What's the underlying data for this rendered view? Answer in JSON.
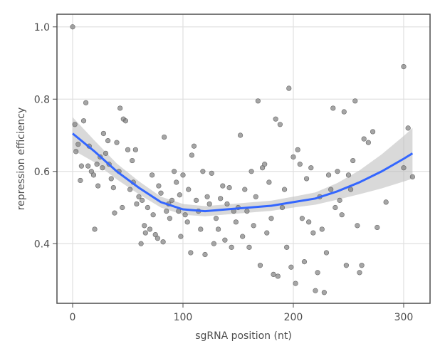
{
  "chart_data": {
    "type": "scatter",
    "xlabel": "sgRNA position (nt)",
    "ylabel": "repression efficiency",
    "xlim": [
      -14.2,
      323.9
    ],
    "ylim": [
      0.235,
      1.035
    ],
    "xticks": [
      0,
      100,
      200,
      300
    ],
    "yticks": [
      0.4,
      0.6,
      0.8,
      {
        "value": 1,
        "label": "1.0"
      }
    ],
    "grid": true,
    "points": {
      "color": "#7f7f7f",
      "x": [
        0,
        2,
        3,
        5,
        7,
        8,
        10,
        12,
        14,
        15,
        17,
        19,
        20,
        22,
        23,
        25,
        27,
        28,
        30,
        32,
        33,
        35,
        37,
        38,
        40,
        42,
        43,
        45,
        46,
        48,
        50,
        52,
        54,
        55,
        57,
        58,
        60,
        62,
        63,
        65,
        66,
        68,
        70,
        72,
        73,
        75,
        77,
        78,
        80,
        82,
        83,
        85,
        87,
        88,
        90,
        92,
        94,
        96,
        97,
        98,
        100,
        102,
        104,
        105,
        107,
        108,
        110,
        112,
        114,
        116,
        118,
        120,
        122,
        124,
        126,
        128,
        130,
        132,
        134,
        136,
        138,
        140,
        142,
        144,
        146,
        148,
        150,
        152,
        154,
        156,
        158,
        160,
        162,
        164,
        166,
        168,
        170,
        172,
        174,
        176,
        178,
        180,
        182,
        184,
        186,
        188,
        190,
        192,
        194,
        196,
        198,
        200,
        202,
        204,
        206,
        208,
        210,
        212,
        214,
        216,
        218,
        220,
        222,
        224,
        226,
        228,
        230,
        232,
        234,
        236,
        238,
        240,
        242,
        244,
        246,
        248,
        250,
        252,
        254,
        256,
        258,
        260,
        262,
        264,
        268,
        272,
        276,
        284,
        300,
        300,
        304,
        308
      ],
      "y": [
        1.0,
        0.73,
        0.655,
        0.675,
        0.575,
        0.615,
        0.74,
        0.79,
        0.615,
        0.67,
        0.6,
        0.59,
        0.44,
        0.62,
        0.56,
        0.64,
        0.61,
        0.705,
        0.65,
        0.685,
        0.62,
        0.58,
        0.555,
        0.485,
        0.68,
        0.6,
        0.775,
        0.5,
        0.745,
        0.74,
        0.66,
        0.55,
        0.63,
        0.57,
        0.66,
        0.51,
        0.53,
        0.4,
        0.52,
        0.45,
        0.43,
        0.5,
        0.44,
        0.59,
        0.48,
        0.425,
        0.415,
        0.56,
        0.54,
        0.405,
        0.695,
        0.49,
        0.51,
        0.47,
        0.52,
        0.6,
        0.57,
        0.49,
        0.535,
        0.42,
        0.59,
        0.48,
        0.46,
        0.55,
        0.375,
        0.645,
        0.67,
        0.52,
        0.49,
        0.44,
        0.6,
        0.37,
        0.53,
        0.51,
        0.595,
        0.4,
        0.47,
        0.44,
        0.525,
        0.56,
        0.41,
        0.51,
        0.555,
        0.39,
        0.49,
        0.46,
        0.5,
        0.7,
        0.42,
        0.55,
        0.49,
        0.39,
        0.6,
        0.45,
        0.53,
        0.795,
        0.34,
        0.61,
        0.62,
        0.43,
        0.57,
        0.47,
        0.315,
        0.745,
        0.31,
        0.73,
        0.5,
        0.55,
        0.39,
        0.83,
        0.335,
        0.64,
        0.29,
        0.66,
        0.62,
        0.47,
        0.35,
        0.58,
        0.46,
        0.61,
        0.43,
        0.27,
        0.32,
        0.53,
        0.44,
        0.265,
        0.375,
        0.59,
        0.55,
        0.775,
        0.5,
        0.6,
        0.52,
        0.48,
        0.765,
        0.34,
        0.59,
        0.55,
        0.63,
        0.795,
        0.45,
        0.32,
        0.34,
        0.69,
        0.68,
        0.71,
        0.445,
        0.515,
        0.61,
        0.89,
        0.72,
        0.585
      ]
    },
    "smooth": {
      "color": "#3366ff",
      "band_color": "#bfbfbf",
      "x": [
        0,
        20,
        40,
        60,
        80,
        100,
        120,
        140,
        160,
        180,
        200,
        220,
        240,
        260,
        280,
        300,
        308
      ],
      "y": [
        0.705,
        0.655,
        0.6,
        0.555,
        0.515,
        0.495,
        0.49,
        0.495,
        0.5,
        0.505,
        0.515,
        0.525,
        0.545,
        0.57,
        0.6,
        0.635,
        0.65
      ],
      "lower": [
        0.66,
        0.625,
        0.578,
        0.537,
        0.5,
        0.48,
        0.476,
        0.481,
        0.486,
        0.491,
        0.5,
        0.508,
        0.522,
        0.537,
        0.553,
        0.572,
        0.58
      ],
      "upper": [
        0.75,
        0.685,
        0.622,
        0.573,
        0.53,
        0.51,
        0.504,
        0.509,
        0.514,
        0.519,
        0.53,
        0.542,
        0.568,
        0.603,
        0.647,
        0.698,
        0.72
      ]
    }
  }
}
